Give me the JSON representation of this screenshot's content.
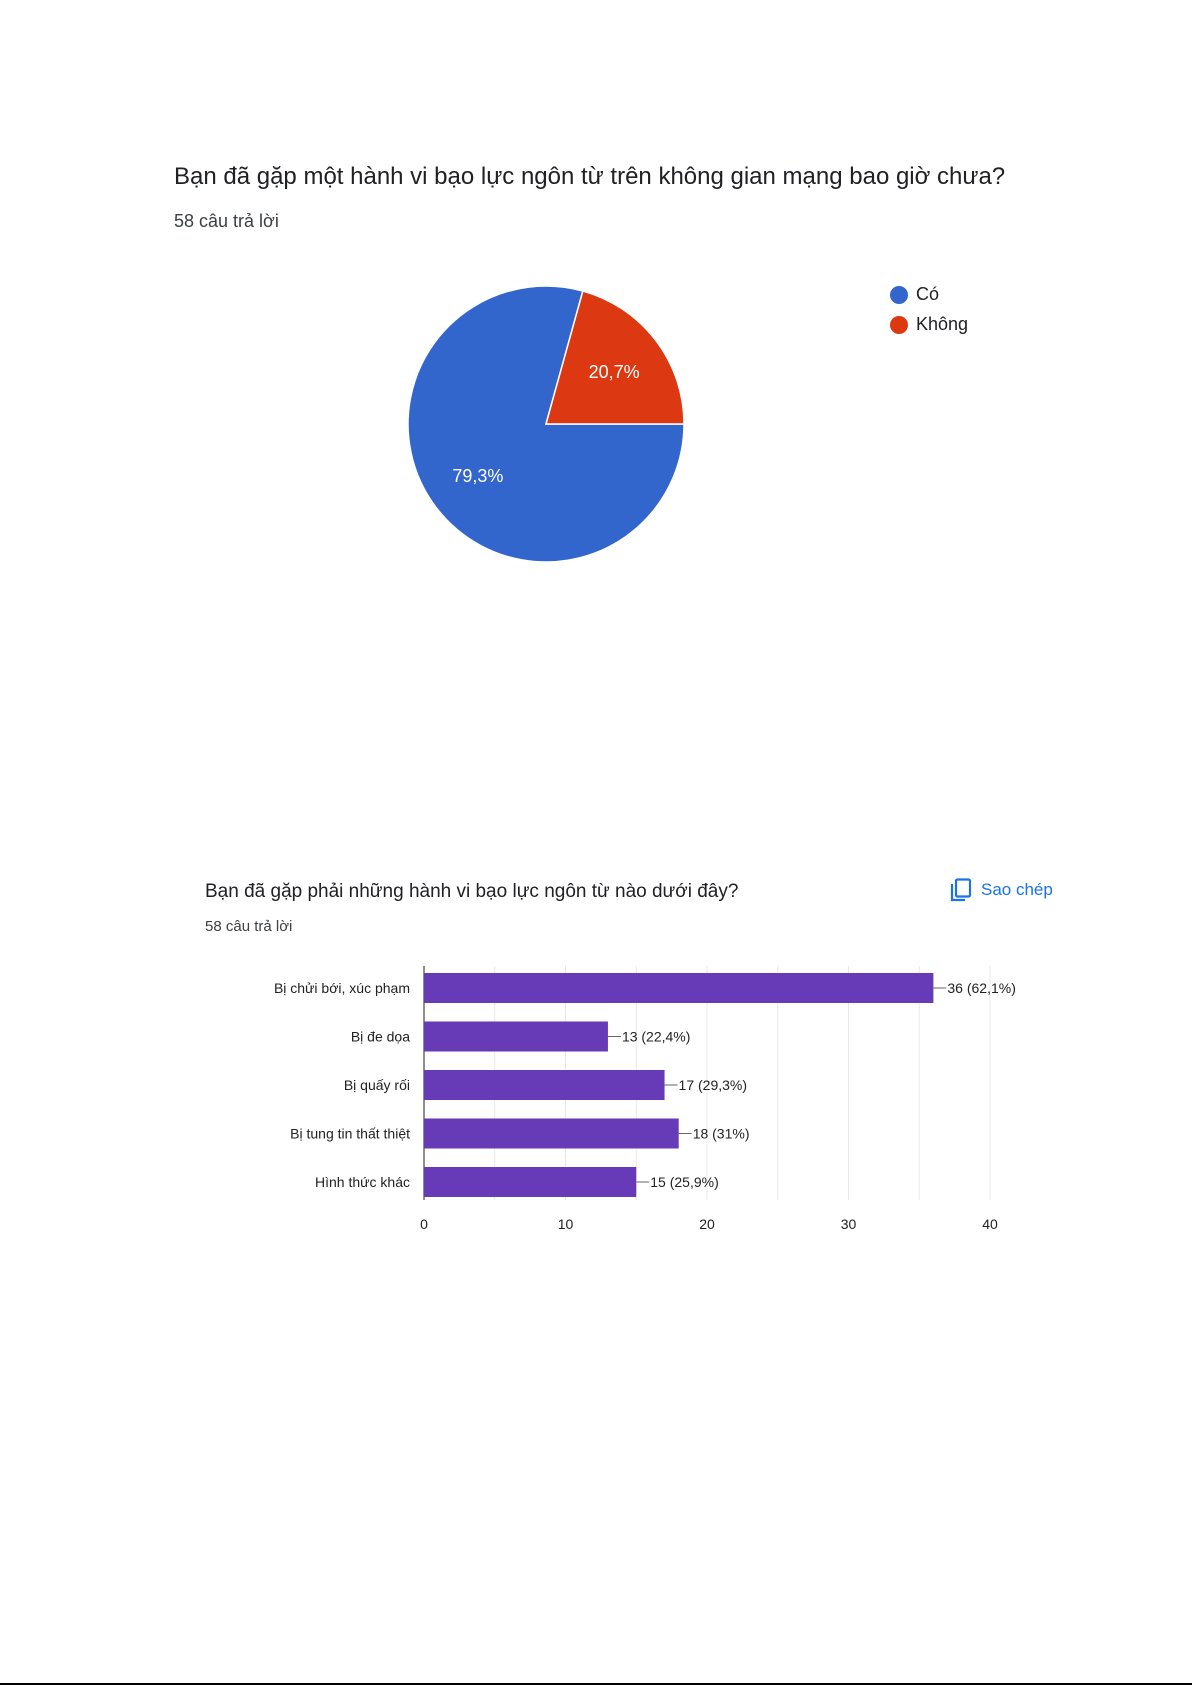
{
  "pie_section": {
    "title": "Bạn đã gặp một hành vi bạo lực ngôn từ trên không gian mạng bao giờ chưa?",
    "response_count": "58 câu trả lời"
  },
  "bar_section": {
    "title": "Bạn đã gặp phải những hành vi bạo lực ngôn từ nào dưới đây?",
    "response_count": "58 câu trả lời",
    "copy_label": "Sao chép",
    "copy_icon": "copy-icon"
  },
  "colors": {
    "pie_blue": "#3366cc",
    "pie_red": "#dc3912",
    "bar_purple": "#673ab7",
    "link_blue": "#1a73e8"
  },
  "chart_data": [
    {
      "type": "pie",
      "title": "Bạn đã gặp một hành vi bạo lực ngôn từ trên không gian mạng bao giờ chưa?",
      "slices": [
        {
          "label": "Có",
          "value": 79.3,
          "display": "79,3%",
          "color": "#3366cc"
        },
        {
          "label": "Không",
          "value": 20.7,
          "display": "20,7%",
          "color": "#dc3912"
        }
      ],
      "legend": "right"
    },
    {
      "type": "bar",
      "orientation": "horizontal",
      "title": "Bạn đã gặp phải những hành vi bạo lực ngôn từ nào dưới đây?",
      "categories": [
        "Bị chửi bới, xúc phạm",
        "Bị đe dọa",
        "Bị quấy rối",
        "Bị tung tin thất thiệt",
        "Hình thức khác"
      ],
      "values": [
        36,
        13,
        17,
        18,
        15
      ],
      "data_labels": [
        "36 (62,1%)",
        "13 (22,4%)",
        "17 (29,3%)",
        "18 (31%)",
        "15 (25,9%)"
      ],
      "xlim": [
        0,
        40
      ],
      "xticks": [
        "0",
        "10",
        "20",
        "30",
        "40"
      ],
      "color": "#673ab7",
      "grid": true
    }
  ]
}
